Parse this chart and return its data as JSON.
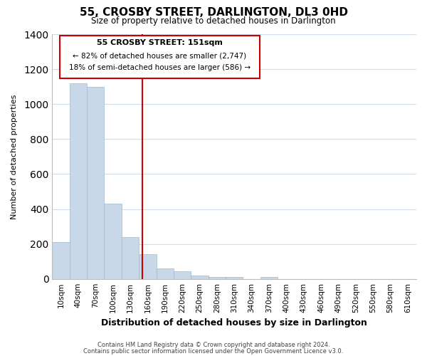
{
  "title": "55, CROSBY STREET, DARLINGTON, DL3 0HD",
  "subtitle": "Size of property relative to detached houses in Darlington",
  "xlabel": "Distribution of detached houses by size in Darlington",
  "ylabel": "Number of detached properties",
  "bar_labels": [
    "10sqm",
    "40sqm",
    "70sqm",
    "100sqm",
    "130sqm",
    "160sqm",
    "190sqm",
    "220sqm",
    "250sqm",
    "280sqm",
    "310sqm",
    "340sqm",
    "370sqm",
    "400sqm",
    "430sqm",
    "460sqm",
    "490sqm",
    "520sqm",
    "550sqm",
    "580sqm",
    "610sqm"
  ],
  "bar_values": [
    210,
    1120,
    1100,
    430,
    240,
    140,
    60,
    45,
    20,
    12,
    10,
    0,
    10,
    0,
    0,
    0,
    0,
    0,
    0,
    0,
    0
  ],
  "bar_color": "#c8d8e8",
  "bar_edge_color": "#a0b8cc",
  "vline_color": "#cc0000",
  "ylim": [
    0,
    1400
  ],
  "yticks": [
    0,
    200,
    400,
    600,
    800,
    1000,
    1200,
    1400
  ],
  "annotation_title": "55 CROSBY STREET: 151sqm",
  "annotation_line1": "← 82% of detached houses are smaller (2,747)",
  "annotation_line2": "18% of semi-detached houses are larger (586) →",
  "footnote1": "Contains HM Land Registry data © Crown copyright and database right 2024.",
  "footnote2": "Contains public sector information licensed under the Open Government Licence v3.0.",
  "bg_color": "#ffffff",
  "grid_color": "#d0dce8"
}
